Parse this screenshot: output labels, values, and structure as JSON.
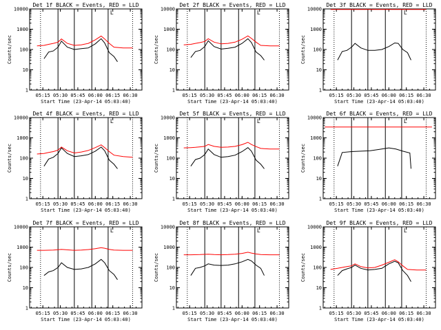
{
  "figure": {
    "legend_text": "BLACK = Events, RED = LLD",
    "ylabel": "Counts/sec",
    "xlabel": "Start Time (23-Apr-14 05:03:40)",
    "x_tick_labels": [
      "05:15",
      "05:30",
      "05:45",
      "06:00",
      "06:15",
      "06:30"
    ],
    "y_tick_labels": [
      "1",
      "10",
      "100",
      "1000",
      "10000"
    ],
    "colors": {
      "events": "#000000",
      "lld": "#ff0000",
      "axes": "#000000",
      "background": "#ffffff"
    }
  },
  "chart_data": [
    {
      "type": "line",
      "title": "Det 1f BLACK = Events, RED = LLD",
      "xlabel": "Start Time (23-Apr-14 05:03:40)",
      "ylabel": "Counts/sec",
      "yscale": "log",
      "ylim": [
        1,
        10000
      ],
      "xlim": [
        "05:03:40",
        "06:40"
      ],
      "dashed_markers": [
        "05:13",
        "06:32"
      ],
      "solid_markers": [
        "05:28",
        "05:42",
        "05:57",
        "06:11"
      ],
      "corner_mark": "L",
      "series": [
        {
          "name": "Events",
          "color": "#000000",
          "x": [
            "05:16",
            "05:20",
            "05:24",
            "05:28",
            "05:31",
            "05:36",
            "05:42",
            "05:48",
            "05:54",
            "06:00",
            "06:05",
            "06:08",
            "06:12",
            "06:16",
            "06:19"
          ],
          "y": [
            35,
            75,
            85,
            130,
            260,
            130,
            100,
            110,
            120,
            190,
            340,
            210,
            70,
            45,
            25
          ]
        },
        {
          "name": "LLD",
          "color": "#ff0000",
          "x": [
            "05:10",
            "05:16",
            "05:20",
            "05:24",
            "05:28",
            "05:31",
            "05:36",
            "05:42",
            "05:48",
            "05:54",
            "06:00",
            "06:05",
            "06:08",
            "06:12",
            "06:16",
            "06:24",
            "06:32"
          ],
          "y": [
            150,
            160,
            180,
            200,
            230,
            330,
            200,
            160,
            170,
            200,
            300,
            460,
            330,
            200,
            130,
            120,
            120
          ]
        }
      ]
    },
    {
      "type": "line",
      "title": "Det 2f BLACK = Events, RED = LLD",
      "xlabel": "Start Time (23-Apr-14 05:03:40)",
      "ylabel": "Counts/sec",
      "yscale": "log",
      "ylim": [
        1,
        10000
      ],
      "xlim": [
        "05:03:40",
        "06:40"
      ],
      "dashed_markers": [
        "05:13",
        "06:32"
      ],
      "solid_markers": [
        "05:28",
        "05:42",
        "05:57",
        "06:11"
      ],
      "corner_mark": "L",
      "series": [
        {
          "name": "Events",
          "color": "#000000",
          "x": [
            "05:16",
            "05:20",
            "05:24",
            "05:28",
            "05:31",
            "05:36",
            "05:42",
            "05:48",
            "05:54",
            "06:00",
            "06:05",
            "06:08",
            "06:12",
            "06:16",
            "06:19"
          ],
          "y": [
            40,
            80,
            90,
            140,
            270,
            140,
            105,
            115,
            130,
            200,
            340,
            220,
            75,
            50,
            30
          ]
        },
        {
          "name": "LLD",
          "color": "#ff0000",
          "x": [
            "05:10",
            "05:16",
            "05:20",
            "05:24",
            "05:28",
            "05:31",
            "05:36",
            "05:42",
            "05:48",
            "05:54",
            "06:00",
            "06:05",
            "06:08",
            "06:12",
            "06:16",
            "06:24",
            "06:32"
          ],
          "y": [
            170,
            180,
            200,
            220,
            250,
            340,
            230,
            190,
            200,
            230,
            320,
            470,
            350,
            230,
            160,
            150,
            150
          ]
        }
      ]
    },
    {
      "type": "line",
      "title": "Det 3f BLACK = Events, RED = LLD",
      "xlabel": "Start Time (23-Apr-14 05:03:40)",
      "ylabel": "Counts/sec",
      "yscale": "log",
      "ylim": [
        1,
        10000
      ],
      "xlim": [
        "05:03:40",
        "06:40"
      ],
      "dashed_markers": [
        "05:13",
        "06:32"
      ],
      "solid_markers": [
        "05:28",
        "05:42",
        "05:57",
        "06:11"
      ],
      "corner_mark": "L",
      "series": [
        {
          "name": "Events",
          "color": "#000000",
          "x": [
            "05:16",
            "05:20",
            "05:24",
            "05:28",
            "05:31",
            "05:36",
            "05:42",
            "05:48",
            "05:54",
            "06:00",
            "06:05",
            "06:08",
            "06:12",
            "06:16",
            "06:19"
          ],
          "y": [
            30,
            80,
            90,
            130,
            200,
            120,
            90,
            90,
            100,
            140,
            210,
            200,
            100,
            70,
            30
          ]
        },
        {
          "name": "LLD",
          "color": "#ff0000",
          "x": [
            "05:10",
            "05:30",
            "05:50",
            "06:10",
            "06:32"
          ],
          "y": [
            9500,
            9500,
            9500,
            9500,
            9500
          ]
        }
      ]
    },
    {
      "type": "line",
      "title": "Det 4f BLACK = Events, RED = LLD",
      "xlabel": "Start Time (23-Apr-14 05:03:40)",
      "ylabel": "Counts/sec",
      "yscale": "log",
      "ylim": [
        1,
        10000
      ],
      "xlim": [
        "05:03:40",
        "06:40"
      ],
      "dashed_markers": [
        "05:13",
        "06:32"
      ],
      "solid_markers": [
        "05:28",
        "05:42",
        "05:57",
        "06:11"
      ],
      "corner_mark": "L",
      "series": [
        {
          "name": "Events",
          "color": "#000000",
          "x": [
            "05:16",
            "05:20",
            "05:24",
            "05:28",
            "05:31",
            "05:36",
            "05:42",
            "05:48",
            "05:54",
            "06:00",
            "06:05",
            "06:08",
            "06:12",
            "06:16",
            "06:19"
          ],
          "y": [
            40,
            90,
            110,
            170,
            320,
            170,
            120,
            130,
            150,
            220,
            350,
            230,
            80,
            50,
            30
          ]
        },
        {
          "name": "LLD",
          "color": "#ff0000",
          "x": [
            "05:10",
            "05:16",
            "05:20",
            "05:24",
            "05:28",
            "05:31",
            "05:36",
            "05:42",
            "05:48",
            "05:54",
            "06:00",
            "06:05",
            "06:08",
            "06:12",
            "06:16",
            "06:24",
            "06:32"
          ],
          "y": [
            160,
            170,
            190,
            210,
            250,
            350,
            230,
            180,
            200,
            240,
            330,
            450,
            330,
            210,
            140,
            120,
            110
          ]
        }
      ]
    },
    {
      "type": "line",
      "title": "Det 5f BLACK = Events, RED = LLD",
      "xlabel": "Start Time (23-Apr-14 05:03:40)",
      "ylabel": "Counts/sec",
      "yscale": "log",
      "ylim": [
        1,
        10000
      ],
      "xlim": [
        "05:03:40",
        "06:40"
      ],
      "dashed_markers": [
        "05:13",
        "06:32"
      ],
      "solid_markers": [
        "05:28",
        "05:42",
        "05:57",
        "06:11"
      ],
      "corner_mark": "L",
      "series": [
        {
          "name": "Events",
          "color": "#000000",
          "x": [
            "05:16",
            "05:20",
            "05:24",
            "05:28",
            "05:31",
            "05:36",
            "05:42",
            "05:48",
            "05:54",
            "06:00",
            "06:05",
            "06:08",
            "06:12",
            "06:16",
            "06:19"
          ],
          "y": [
            40,
            85,
            100,
            150,
            280,
            150,
            110,
            120,
            140,
            210,
            330,
            220,
            80,
            50,
            30
          ]
        },
        {
          "name": "LLD",
          "color": "#ff0000",
          "x": [
            "05:10",
            "05:16",
            "05:20",
            "05:24",
            "05:28",
            "05:31",
            "05:36",
            "05:42",
            "05:48",
            "05:54",
            "06:00",
            "06:05",
            "06:08",
            "06:12",
            "06:16",
            "06:24",
            "06:32"
          ],
          "y": [
            320,
            330,
            340,
            360,
            380,
            470,
            380,
            340,
            350,
            380,
            460,
            600,
            470,
            370,
            300,
            280,
            280
          ]
        }
      ]
    },
    {
      "type": "line",
      "title": "Det 6f BLACK = Events, RED = LLD",
      "xlabel": "Start Time (23-Apr-14 05:03:40)",
      "ylabel": "Counts/sec",
      "yscale": "log",
      "ylim": [
        1,
        10000
      ],
      "xlim": [
        "05:03:40",
        "06:40"
      ],
      "dashed_markers": [
        "05:13",
        "06:32"
      ],
      "solid_markers": [
        "05:28",
        "05:42",
        "05:57",
        "06:11"
      ],
      "corner_mark": "L",
      "series": [
        {
          "name": "Events",
          "color": "#000000",
          "x": [
            "05:16",
            "05:20",
            "05:28",
            "05:36",
            "05:44",
            "05:52",
            "06:00",
            "06:06",
            "06:12",
            "06:18",
            "06:19"
          ],
          "y": [
            40,
            190,
            210,
            220,
            230,
            270,
            320,
            280,
            220,
            180,
            30
          ]
        },
        {
          "name": "LLD",
          "color": "#ff0000",
          "x": [
            "05:05",
            "05:30",
            "05:50",
            "06:10",
            "06:37"
          ],
          "y": [
            3400,
            3400,
            3400,
            3400,
            3400
          ]
        }
      ]
    },
    {
      "type": "line",
      "title": "Det 7f BLACK = Events, RED = LLD",
      "xlabel": "Start Time (23-Apr-14 05:03:40)",
      "ylabel": "Counts/sec",
      "yscale": "log",
      "ylim": [
        1,
        10000
      ],
      "xlim": [
        "05:03:40",
        "06:40"
      ],
      "dashed_markers": [
        "05:13",
        "06:32"
      ],
      "solid_markers": [
        "05:28",
        "05:42",
        "05:57",
        "06:11"
      ],
      "corner_mark": "L",
      "series": [
        {
          "name": "Events",
          "color": "#000000",
          "x": [
            "05:16",
            "05:20",
            "05:24",
            "05:28",
            "05:31",
            "05:36",
            "05:42",
            "05:48",
            "05:54",
            "06:00",
            "06:05",
            "06:08",
            "06:12",
            "06:16",
            "06:19"
          ],
          "y": [
            40,
            60,
            70,
            100,
            170,
            100,
            80,
            85,
            100,
            150,
            250,
            170,
            70,
            45,
            25
          ]
        },
        {
          "name": "LLD",
          "color": "#ff0000",
          "x": [
            "05:10",
            "05:16",
            "05:24",
            "05:31",
            "05:36",
            "05:42",
            "05:48",
            "05:54",
            "06:00",
            "06:05",
            "06:08",
            "06:12",
            "06:16",
            "06:24",
            "06:32"
          ],
          "y": [
            700,
            700,
            720,
            780,
            740,
            700,
            720,
            760,
            840,
            950,
            880,
            780,
            720,
            700,
            700
          ]
        }
      ]
    },
    {
      "type": "line",
      "title": "Det 8f BLACK = Events, RED = LLD",
      "xlabel": "Start Time (23-Apr-14 05:03:40)",
      "ylabel": "Counts/sec",
      "yscale": "log",
      "ylim": [
        1,
        10000
      ],
      "xlim": [
        "05:03:40",
        "06:40"
      ],
      "dashed_markers": [
        "05:13",
        "06:32"
      ],
      "solid_markers": [
        "05:28",
        "05:42",
        "05:57",
        "06:11"
      ],
      "corner_mark": "L",
      "series": [
        {
          "name": "Events",
          "color": "#000000",
          "x": [
            "05:16",
            "05:20",
            "05:24",
            "05:28",
            "05:31",
            "05:36",
            "05:42",
            "05:48",
            "05:54",
            "06:00",
            "06:05",
            "06:08",
            "06:12",
            "06:16",
            "06:19"
          ],
          "y": [
            40,
            90,
            100,
            120,
            150,
            130,
            125,
            130,
            150,
            190,
            250,
            210,
            130,
            90,
            40
          ]
        },
        {
          "name": "LLD",
          "color": "#ff0000",
          "x": [
            "05:10",
            "05:16",
            "05:24",
            "05:31",
            "05:36",
            "05:42",
            "05:48",
            "05:54",
            "06:00",
            "06:05",
            "06:08",
            "06:12",
            "06:16",
            "06:24",
            "06:32"
          ],
          "y": [
            420,
            420,
            430,
            450,
            430,
            420,
            430,
            450,
            490,
            560,
            510,
            460,
            430,
            420,
            420
          ]
        }
      ]
    },
    {
      "type": "line",
      "title": "Det 9f BLACK = Events, RED = LLD",
      "xlabel": "Start Time (23-Apr-14 05:03:40)",
      "ylabel": "Counts/sec",
      "yscale": "log",
      "ylim": [
        1,
        10000
      ],
      "xlim": [
        "05:03:40",
        "06:40"
      ],
      "dashed_markers": [
        "05:13",
        "06:32"
      ],
      "solid_markers": [
        "05:28",
        "05:42",
        "05:57",
        "06:11"
      ],
      "corner_mark": "L",
      "series": [
        {
          "name": "Events",
          "color": "#000000",
          "x": [
            "05:16",
            "05:20",
            "05:24",
            "05:28",
            "05:31",
            "05:36",
            "05:42",
            "05:48",
            "05:54",
            "06:00",
            "06:05",
            "06:08",
            "06:12",
            "06:16",
            "06:19"
          ],
          "y": [
            40,
            70,
            85,
            100,
            130,
            90,
            75,
            80,
            90,
            150,
            200,
            170,
            70,
            40,
            20
          ]
        },
        {
          "name": "LLD",
          "color": "#ff0000",
          "x": [
            "05:10",
            "05:16",
            "05:20",
            "05:24",
            "05:28",
            "05:31",
            "05:36",
            "05:42",
            "05:48",
            "05:54",
            "06:00",
            "06:05",
            "06:08",
            "06:12",
            "06:16",
            "06:24",
            "06:32"
          ],
          "y": [
            80,
            90,
            100,
            110,
            120,
            150,
            110,
            95,
            100,
            130,
            180,
            240,
            190,
            120,
            80,
            75,
            75
          ]
        }
      ]
    }
  ]
}
